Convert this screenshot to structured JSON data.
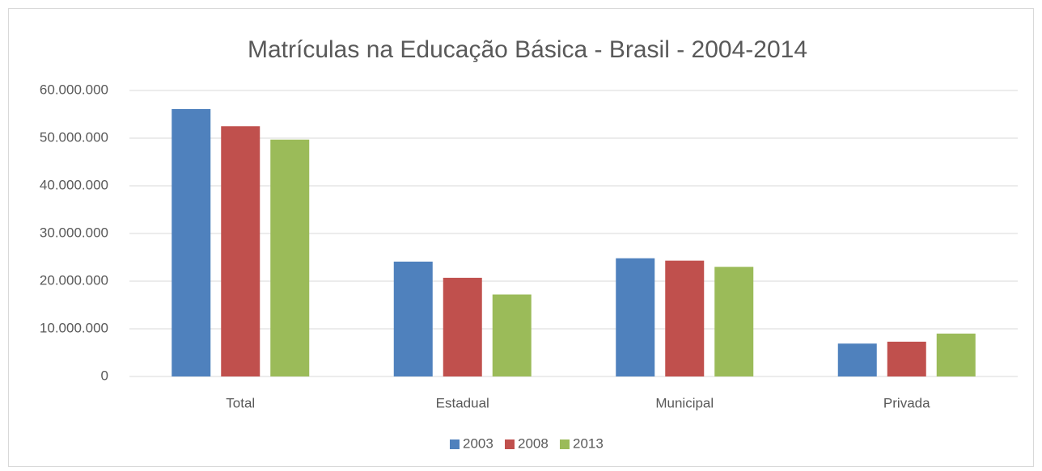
{
  "chart_data": {
    "type": "bar",
    "title": "Matrículas na Educação Básica - Brasil - 2004-2014",
    "categories": [
      "Total",
      "Estadual",
      "Municipal",
      "Privada"
    ],
    "series": [
      {
        "name": "2003",
        "color": "#4f81bd",
        "values": [
          56100000,
          24100000,
          24800000,
          6900000
        ]
      },
      {
        "name": "2008",
        "color": "#c0504d",
        "values": [
          52500000,
          20700000,
          24300000,
          7300000
        ]
      },
      {
        "name": "2013",
        "color": "#9bbb59",
        "values": [
          49700000,
          17200000,
          23000000,
          9000000
        ]
      }
    ],
    "ylim": [
      0,
      60000000
    ],
    "yticks": [
      0,
      {
        "value": 10000000,
        "label": "10.000.000"
      },
      {
        "value": 20000000,
        "label": "20.000.000"
      },
      {
        "value": 30000000,
        "label": "30.000.000"
      },
      {
        "value": 40000000,
        "label": "40.000.000"
      },
      {
        "value": 50000000,
        "label": "50.000.000"
      },
      {
        "value": 60000000,
        "label": "60.000.000"
      }
    ],
    "grid": true,
    "legend": "bottom"
  }
}
